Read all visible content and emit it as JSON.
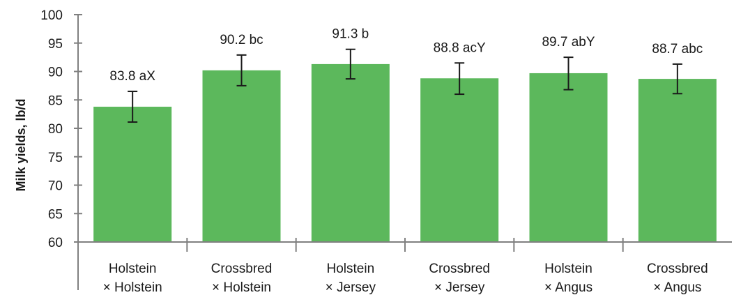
{
  "chart_data": {
    "type": "bar",
    "title": "",
    "xlabel": "",
    "ylabel": "Milk yields, lb/d",
    "ylim": [
      60,
      100
    ],
    "yticks": [
      60,
      65,
      70,
      75,
      80,
      85,
      90,
      95,
      100
    ],
    "grid": false,
    "bar_color": "#5cb85c",
    "categories": [
      [
        "Holstein",
        "× Holstein"
      ],
      [
        "Crossbred",
        "× Holstein"
      ],
      [
        "Holstein",
        "× Jersey"
      ],
      [
        "Crossbred",
        "× Jersey"
      ],
      [
        "Holstein",
        "× Angus"
      ],
      [
        "Crossbred",
        "× Angus"
      ]
    ],
    "values": [
      83.8,
      90.2,
      91.3,
      88.8,
      89.7,
      88.7
    ],
    "error_low": [
      81.1,
      87.5,
      88.7,
      86.0,
      86.8,
      86.1
    ],
    "error_high": [
      86.5,
      92.9,
      93.9,
      91.5,
      92.5,
      91.3
    ],
    "data_labels": [
      "83.8 aX",
      "90.2 bc",
      "91.3 b",
      "88.8 acY",
      "89.7 abY",
      "88.7 abc"
    ]
  }
}
